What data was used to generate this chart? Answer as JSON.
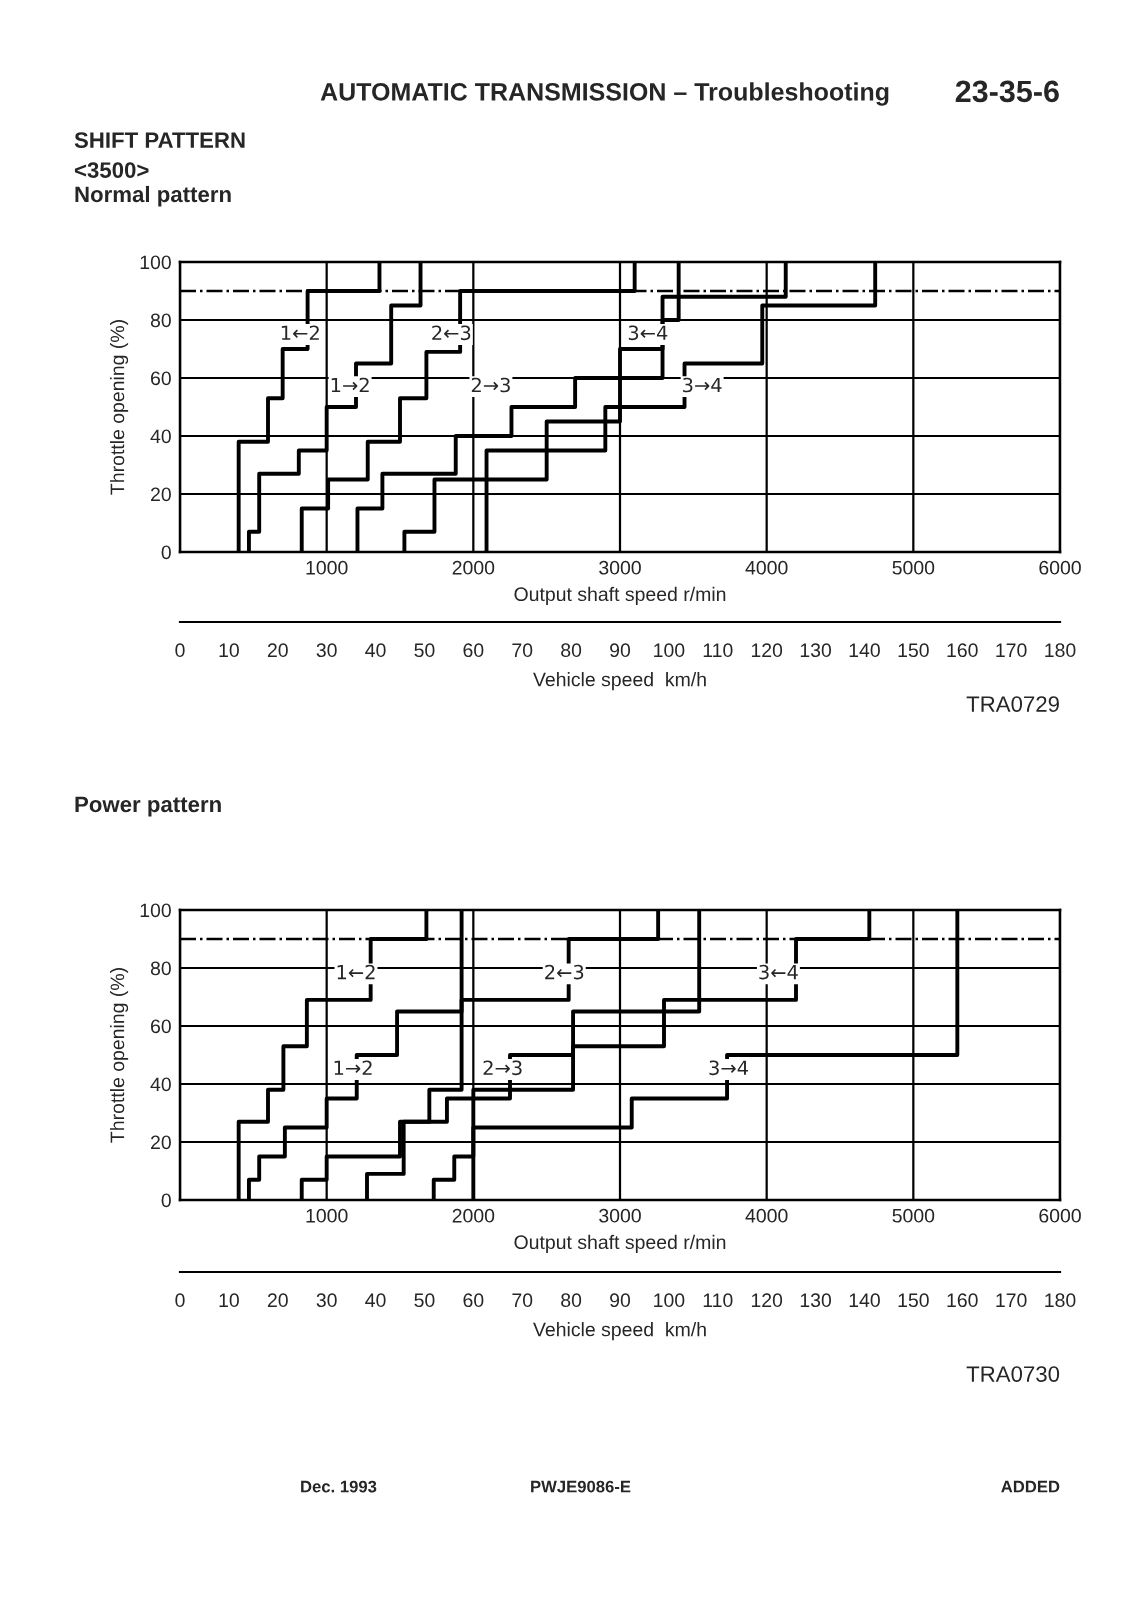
{
  "chart_data": [
    {
      "type": "line",
      "title": "Normal pattern",
      "xlabel": "Output shaft speed r/min",
      "ylabel": "Throttle opening (%)",
      "x2label": "Vehicle speed  km/h",
      "xlim": [
        0,
        6000
      ],
      "xticks": [
        {
          "value": 0,
          "label": null
        },
        1000,
        2000,
        3000,
        4000,
        5000,
        6000
      ],
      "ylim": [
        0,
        100
      ],
      "yticks": [
        0,
        20,
        40,
        60,
        80,
        100
      ],
      "x2lim": [
        0,
        180
      ],
      "x2ticks": [
        0,
        10,
        20,
        30,
        40,
        50,
        60,
        70,
        80,
        90,
        100,
        110,
        120,
        130,
        140,
        150,
        160,
        170,
        180
      ],
      "grid": true,
      "legend": false,
      "line_style": "solid",
      "series": [
        {
          "color": "#000000",
          "x": [
            400,
            400,
            600,
            600,
            700,
            700,
            870,
            870,
            1360,
            1360
          ],
          "values": [
            0,
            38,
            38,
            53,
            53,
            70,
            70,
            90,
            90,
            100
          ]
        },
        {
          "color": "#000000",
          "x": [
            470,
            470,
            540,
            540,
            810,
            810,
            1000,
            1000,
            1200,
            1200,
            1440,
            1440,
            1640,
            1640
          ],
          "values": [
            0,
            7,
            7,
            27,
            27,
            35,
            35,
            50,
            50,
            65,
            65,
            85,
            85,
            100
          ]
        },
        {
          "color": "#000000",
          "x": [
            830,
            830,
            1010,
            1010,
            1280,
            1280,
            1500,
            1500,
            1680,
            1680,
            1910,
            1910,
            3100,
            3100
          ],
          "values": [
            0,
            15,
            15,
            25,
            25,
            38,
            38,
            53,
            53,
            69,
            69,
            90,
            90,
            100
          ]
        },
        {
          "color": "#000000",
          "x": [
            1210,
            1210,
            1380,
            1380,
            1880,
            1880,
            2260,
            2260,
            2694,
            2694,
            3290,
            3290,
            3400,
            3400
          ],
          "values": [
            0,
            15,
            15,
            27,
            27,
            40,
            40,
            50,
            50,
            60,
            60,
            80,
            80,
            100
          ]
        },
        {
          "color": "#000000",
          "x": [
            1530,
            1530,
            1735,
            1735,
            2500,
            2500,
            3000,
            3000,
            3290,
            3290,
            4130,
            4130
          ],
          "values": [
            0,
            7,
            7,
            25,
            25,
            45,
            45,
            70,
            70,
            88,
            88,
            100
          ]
        },
        {
          "color": "#000000",
          "x": [
            2090,
            2090,
            2900,
            2900,
            3440,
            3440,
            3970,
            3970,
            4740,
            4740
          ],
          "values": [
            0,
            35,
            35,
            50,
            50,
            65,
            65,
            85,
            85,
            100
          ]
        }
      ],
      "ref_lines": [
        {
          "axis": "y",
          "value": 90,
          "line_style": "dashdot",
          "color": "#000000"
        }
      ],
      "annotations": [
        "AUTOMATIC TRANSMISSION – Troubleshooting",
        "23-35-6",
        "SHIFT PATTERN",
        "<3500>",
        "TRA0729",
        {
          "text": "1←2",
          "x": 820,
          "y": 75
        },
        {
          "text": "1→2",
          "x": 1160,
          "y": 57
        },
        {
          "text": "2←3",
          "x": 1850,
          "y": 75
        },
        {
          "text": "2→3",
          "x": 2120,
          "y": 57
        },
        {
          "text": "3←4",
          "x": 3190,
          "y": 75
        },
        {
          "text": "3→4",
          "x": 3560,
          "y": 57
        }
      ]
    },
    {
      "type": "line",
      "title": "Power pattern",
      "xlabel": "Output shaft speed r/min",
      "ylabel": "Throttle opening (%)",
      "x2label": "Vehicle speed  km/h",
      "xlim": [
        0,
        6000
      ],
      "xticks": [
        {
          "value": 0,
          "label": null
        },
        1000,
        2000,
        3000,
        4000,
        5000,
        6000
      ],
      "ylim": [
        0,
        100
      ],
      "yticks": [
        0,
        20,
        40,
        60,
        80,
        100
      ],
      "x2lim": [
        0,
        180
      ],
      "x2ticks": [
        0,
        10,
        20,
        30,
        40,
        50,
        60,
        70,
        80,
        90,
        100,
        110,
        120,
        130,
        140,
        150,
        160,
        170,
        180
      ],
      "grid": true,
      "legend": false,
      "line_style": "solid",
      "series": [
        {
          "color": "#000000",
          "x": [
            400,
            400,
            600,
            600,
            705,
            705,
            865,
            865,
            1300,
            1300,
            1680,
            1680
          ],
          "values": [
            0,
            27,
            27,
            38,
            38,
            53,
            53,
            69,
            69,
            90,
            90,
            100
          ]
        },
        {
          "color": "#000000",
          "x": [
            470,
            470,
            540,
            540,
            715,
            715,
            1000,
            1000,
            1205,
            1205,
            1480,
            1480,
            1920,
            1920
          ],
          "values": [
            0,
            7,
            7,
            15,
            15,
            25,
            25,
            35,
            35,
            50,
            50,
            65,
            65,
            100
          ]
        },
        {
          "color": "#000000",
          "x": [
            830,
            830,
            1000,
            1000,
            1500,
            1500,
            1700,
            1700,
            1920,
            1920,
            2650,
            2650,
            3260,
            3260
          ],
          "values": [
            0,
            7,
            7,
            15,
            15,
            27,
            27,
            38,
            38,
            69,
            69,
            90,
            90,
            100
          ]
        },
        {
          "color": "#000000",
          "x": [
            1275,
            1275,
            1525,
            1525,
            1820,
            1820,
            2250,
            2250,
            2680,
            2680,
            3540,
            3540
          ],
          "values": [
            0,
            9,
            9,
            27,
            27,
            35,
            35,
            50,
            50,
            65,
            65,
            100
          ]
        },
        {
          "color": "#000000",
          "x": [
            1730,
            1730,
            1870,
            1870,
            2000,
            2000,
            2680,
            2680,
            3300,
            3300,
            4200,
            4200,
            4700,
            4700
          ],
          "values": [
            0,
            7,
            7,
            15,
            15,
            38,
            38,
            53,
            53,
            69,
            69,
            90,
            90,
            100
          ]
        },
        {
          "color": "#000000",
          "x": [
            2000,
            2000,
            3080,
            3080,
            3730,
            3730,
            5300,
            5300
          ],
          "values": [
            0,
            25,
            25,
            35,
            35,
            50,
            50,
            100
          ]
        }
      ],
      "ref_lines": [
        {
          "axis": "y",
          "value": 90,
          "line_style": "dashdot",
          "color": "#000000"
        }
      ],
      "annotations": [
        "TRA0730",
        "Dec. 1993",
        "PWJE9086-E",
        "ADDED",
        {
          "text": "1←2",
          "x": 1200,
          "y": 78
        },
        {
          "text": "1→2",
          "x": 1180,
          "y": 45
        },
        {
          "text": "2←3",
          "x": 2620,
          "y": 78
        },
        {
          "text": "2→3",
          "x": 2200,
          "y": 45
        },
        {
          "text": "3←4",
          "x": 4080,
          "y": 78
        },
        {
          "text": "3→4",
          "x": 3740,
          "y": 45
        }
      ]
    }
  ]
}
